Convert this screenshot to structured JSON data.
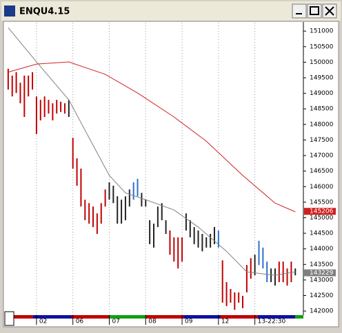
{
  "chart_data": {
    "type": "ohlc",
    "title": "ENQU4.15",
    "bar_high": [
      149790,
      149570,
      149680,
      149340,
      149570,
      149570,
      149680,
      148900,
      148790,
      148900,
      148790,
      148680,
      148790,
      148730,
      148680,
      148790,
      147570,
      146910,
      146580,
      145580,
      145470,
      145360,
      145140,
      145470,
      145910,
      146140,
      146030,
      145690,
      145580,
      145690,
      145910,
      146140,
      146250,
      145800,
      145580,
      144920,
      144810,
      145360,
      145470,
      144920,
      144590,
      144370,
      144370,
      144370,
      145140,
      144920,
      144700,
      144590,
      144480,
      144370,
      144480,
      144700,
      144590,
      143630,
      142930,
      142710,
      142600,
      142600,
      142490,
      143480,
      143700,
      143810,
      144260,
      144040,
      143590,
      143370,
      143370,
      143590,
      143590,
      143370,
      143590,
      143370
    ],
    "bar_low": [
      149120,
      148900,
      149010,
      148680,
      148240,
      148900,
      149120,
      147690,
      148130,
      148240,
      148350,
      148130,
      148350,
      148400,
      148350,
      148240,
      146580,
      146030,
      145360,
      144920,
      144810,
      144700,
      144480,
      144810,
      145360,
      145580,
      145470,
      144810,
      144810,
      144920,
      145360,
      145580,
      145690,
      145360,
      145360,
      144150,
      144040,
      144700,
      144920,
      144480,
      143810,
      143590,
      143370,
      143590,
      144590,
      144370,
      144150,
      144040,
      143920,
      144040,
      144040,
      144150,
      144040,
      142270,
      142160,
      142270,
      142040,
      142270,
      142090,
      142600,
      143040,
      143150,
      143480,
      143370,
      142930,
      142930,
      142820,
      142930,
      142930,
      142820,
      142930,
      143150
    ],
    "bar_colors": [
      "#c00000",
      "#c00000",
      "#c00000",
      "#c00000",
      "#c00000",
      "#c00000",
      "#c00000",
      "#c00000",
      "#c00000",
      "#c00000",
      "#c00000",
      "#c00000",
      "#c00000",
      "#c00000",
      "#c00000",
      "#222222",
      "#c00000",
      "#c00000",
      "#c00000",
      "#c00000",
      "#c00000",
      "#c00000",
      "#c00000",
      "#c00000",
      "#c00000",
      "#222222",
      "#222222",
      "#222222",
      "#222222",
      "#222222",
      "#222222",
      "#2a6fd0",
      "#2a6fd0",
      "#222222",
      "#222222",
      "#222222",
      "#222222",
      "#222222",
      "#222222",
      "#222222",
      "#c00000",
      "#c00000",
      "#c00000",
      "#c00000",
      "#222222",
      "#222222",
      "#222222",
      "#222222",
      "#222222",
      "#222222",
      "#222222",
      "#222222",
      "#2a6fd0",
      "#c00000",
      "#c00000",
      "#c00000",
      "#c00000",
      "#c00000",
      "#c00000",
      "#c00000",
      "#c00000",
      "#222222",
      "#2a6fd0",
      "#2a6fd0",
      "#2a6fd0",
      "#222222",
      "#222222",
      "#c00000",
      "#c00000",
      "#c00000",
      "#c00000",
      "#222222"
    ],
    "lines": [
      {
        "color": "#808080",
        "x": [
          0,
          7,
          15,
          20,
          25,
          29,
          34,
          41,
          47,
          54,
          59,
          66,
          71
        ],
        "values": [
          151110,
          150010,
          148790,
          147570,
          146360,
          145800,
          145580,
          145250,
          144700,
          143920,
          143260,
          143150,
          143260
        ]
      },
      {
        "color": "#d02020",
        "x": [
          0,
          7,
          15,
          24,
          32,
          41,
          49,
          58,
          66,
          71
        ],
        "values": [
          149680,
          149940,
          150010,
          149610,
          149010,
          148240,
          147460,
          146360,
          145470,
          145190
        ]
      }
    ],
    "markers": [
      {
        "value": 145206,
        "color": "#d02020"
      },
      {
        "value": 143229,
        "color": "#808080"
      }
    ],
    "xlim": [
      -1,
      73
    ],
    "xticks": [
      {
        "value": 7,
        "label": "02"
      },
      {
        "value": 16,
        "label": "06"
      },
      {
        "value": 25,
        "label": "07"
      },
      {
        "value": 34,
        "label": "08"
      },
      {
        "value": 43,
        "label": "09"
      },
      {
        "value": 52,
        "label": "12"
      },
      {
        "value": 61,
        "label": "13-22:30"
      }
    ],
    "ylim": [
      141870,
      151270
    ],
    "yticks": [
      142000,
      142500,
      143000,
      143500,
      144000,
      144500,
      145000,
      145500,
      146000,
      146500,
      147000,
      147500,
      148000,
      148500,
      149000,
      149500,
      150000,
      150500,
      151000
    ],
    "grid": true
  }
}
